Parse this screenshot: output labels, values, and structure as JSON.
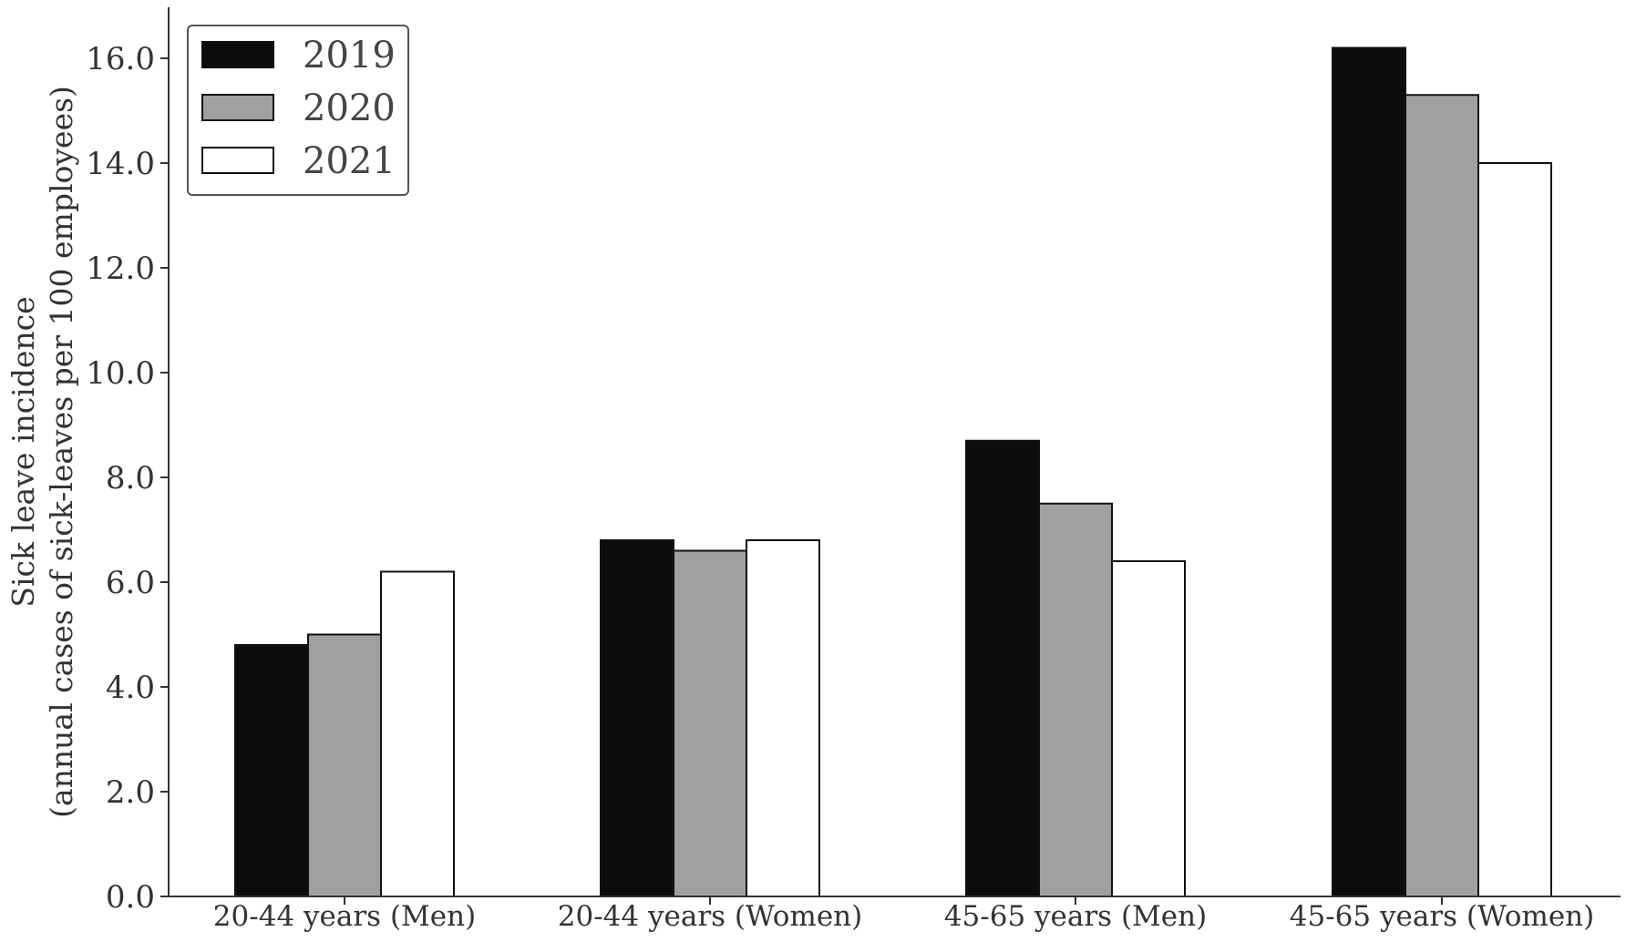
{
  "chart_data": {
    "type": "bar",
    "title": "",
    "xlabel": "",
    "ylabel": "Sick leave incidence",
    "ylabel_line2": "(annual cases of sick-leaves per 100 employees)",
    "categories": [
      "20-44 years (Men)",
      "20-44 years (Women)",
      "45-65 years (Men)",
      "45-65 years (Women)"
    ],
    "series": [
      {
        "name": "2019",
        "values": [
          4.8,
          6.8,
          8.7,
          16.2
        ],
        "color": "#0d0d0d"
      },
      {
        "name": "2020",
        "values": [
          5.0,
          6.6,
          7.5,
          15.3
        ],
        "color": "#a0a0a0"
      },
      {
        "name": "2021",
        "values": [
          6.2,
          6.8,
          6.4,
          14.0
        ],
        "color": "#ffffff"
      }
    ],
    "ylim": [
      0,
      17
    ],
    "yticks": [
      0,
      2,
      4,
      6,
      8,
      10,
      12,
      14,
      16
    ],
    "ytick_labels": [
      "0.0",
      "2.0",
      "4.0",
      "6.0",
      "8.0",
      "10.0",
      "12.0",
      "14.0",
      "16.0"
    ],
    "grid": false,
    "legend_position": "top-left",
    "edge_color": "#111111"
  }
}
